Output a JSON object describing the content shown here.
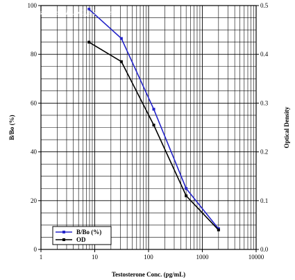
{
  "watermark": "with permission from Enzo Life Sciences",
  "chart_data": {
    "type": "line",
    "title": "",
    "xlabel": "Testosterone Conc. (pg/mL)",
    "ylabel": "B/Bo (%)",
    "y2label": "Optical Density",
    "xscale": "log",
    "xlim": [
      1,
      10000
    ],
    "ylim": [
      0,
      100
    ],
    "y2lim": [
      0,
      0.5
    ],
    "grid": true,
    "legend_position": "bottom-left",
    "x_ticks": [
      "1",
      "10",
      "100",
      "1000",
      "10000"
    ],
    "y_ticks": [
      "0",
      "20",
      "40",
      "60",
      "80",
      "100"
    ],
    "y2_ticks": [
      "0.0",
      "0.1",
      "0.2",
      "0.3",
      "0.4",
      "0.5"
    ],
    "series": [
      {
        "name": "B/Bo (%)",
        "axis": "left",
        "color": "#2424c8",
        "x": [
          7.81,
          31.25,
          125,
          500,
          2000
        ],
        "y": [
          98.5,
          86.5,
          57.5,
          25,
          8.5
        ]
      },
      {
        "name": "OD",
        "axis": "right",
        "color": "#000000",
        "x": [
          7.81,
          31.25,
          125,
          500,
          2000
        ],
        "y": [
          0.425,
          0.385,
          0.255,
          0.11,
          0.04
        ]
      }
    ]
  }
}
